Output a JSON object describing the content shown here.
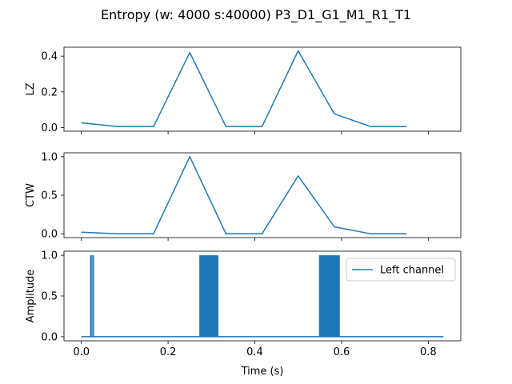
{
  "chart_data": {
    "type": "line",
    "title": "Entropy (w: 4000 s:40000) P3_D1_G1_M1_R1_T1",
    "xlabel": "Time (s)",
    "xlim": [
      -0.04,
      0.875
    ],
    "xticks": [
      "0.0",
      "0.2",
      "0.4",
      "0.6",
      "0.8"
    ],
    "xtick_values": [
      0.0,
      0.2,
      0.4,
      0.6,
      0.8
    ],
    "line_color": "#1f77b4",
    "panels": [
      {
        "id": "lz",
        "ylabel": "LZ",
        "ylim": [
          -0.02,
          0.45
        ],
        "yticks": [
          "0.0",
          "0.2",
          "0.4"
        ],
        "ytick_values": [
          0.0,
          0.2,
          0.4
        ],
        "show_xtick_labels": false,
        "series": [
          {
            "x": [
              0.0,
              0.0833,
              0.1667,
              0.25,
              0.3333,
              0.4167,
              0.5,
              0.5833,
              0.6667,
              0.75
            ],
            "y": [
              0.027,
              0.006,
              0.006,
              0.42,
              0.006,
              0.006,
              0.43,
              0.077,
              0.006,
              0.006
            ]
          }
        ]
      },
      {
        "id": "ctw",
        "ylabel": "CTW",
        "ylim": [
          -0.05,
          1.05
        ],
        "yticks": [
          "0.0",
          "0.5",
          "1.0"
        ],
        "ytick_values": [
          0.0,
          0.5,
          1.0
        ],
        "show_xtick_labels": false,
        "series": [
          {
            "x": [
              0.0,
              0.0833,
              0.1667,
              0.25,
              0.3333,
              0.4167,
              0.5,
              0.5833,
              0.6667,
              0.75
            ],
            "y": [
              0.02,
              0.0,
              0.0,
              1.0,
              0.0,
              0.0,
              0.75,
              0.09,
              0.0,
              0.0
            ]
          }
        ]
      },
      {
        "id": "amplitude",
        "ylabel": "Amplitude",
        "ylim": [
          -0.05,
          1.05
        ],
        "yticks": [
          "0.0",
          "0.5",
          "1.0"
        ],
        "ytick_values": [
          0.0,
          0.5,
          1.0
        ],
        "show_xtick_labels": true,
        "legend": {
          "entries": [
            "Left channel"
          ],
          "placement": "upper right"
        },
        "series": [
          {
            "name": "Left channel",
            "baseline": [
              0.0,
              0.835
            ],
            "spikes": [
              0.0215,
              0.0245,
              0.028
            ],
            "bursts": [
              [
                0.272,
                0.316
              ],
              [
                0.548,
                0.596
              ]
            ]
          }
        ]
      }
    ]
  }
}
